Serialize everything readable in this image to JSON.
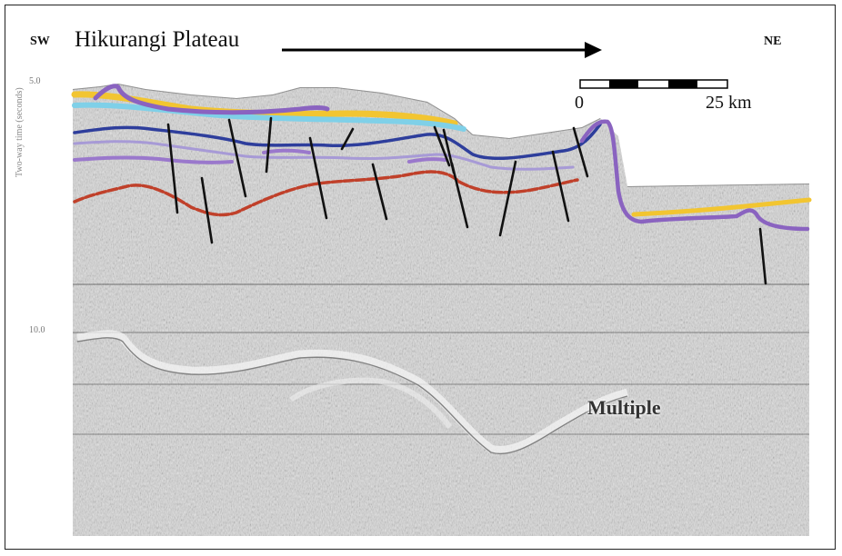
{
  "figure": {
    "direction_left": "SW",
    "direction_right": "NE",
    "title": "Hikurangi Plateau",
    "y_axis_label": "Two-way time (seconds)",
    "y_ticks": [
      "5.0",
      "10.0"
    ],
    "scale_bar": {
      "start_label": "0",
      "end_label": "25 km"
    },
    "annotation": "Multiple"
  },
  "colors": {
    "yellow_reflector": "#f2c531",
    "cyan_reflector": "#7fd0e8",
    "purple_reflector": "#8a63c0",
    "blue_reflector": "#2e3e9c",
    "lavender_reflector": "#a79ad6",
    "red_reflector": "#c0402a",
    "fault": "#111111",
    "seismic_background": "#d4d4d4"
  }
}
